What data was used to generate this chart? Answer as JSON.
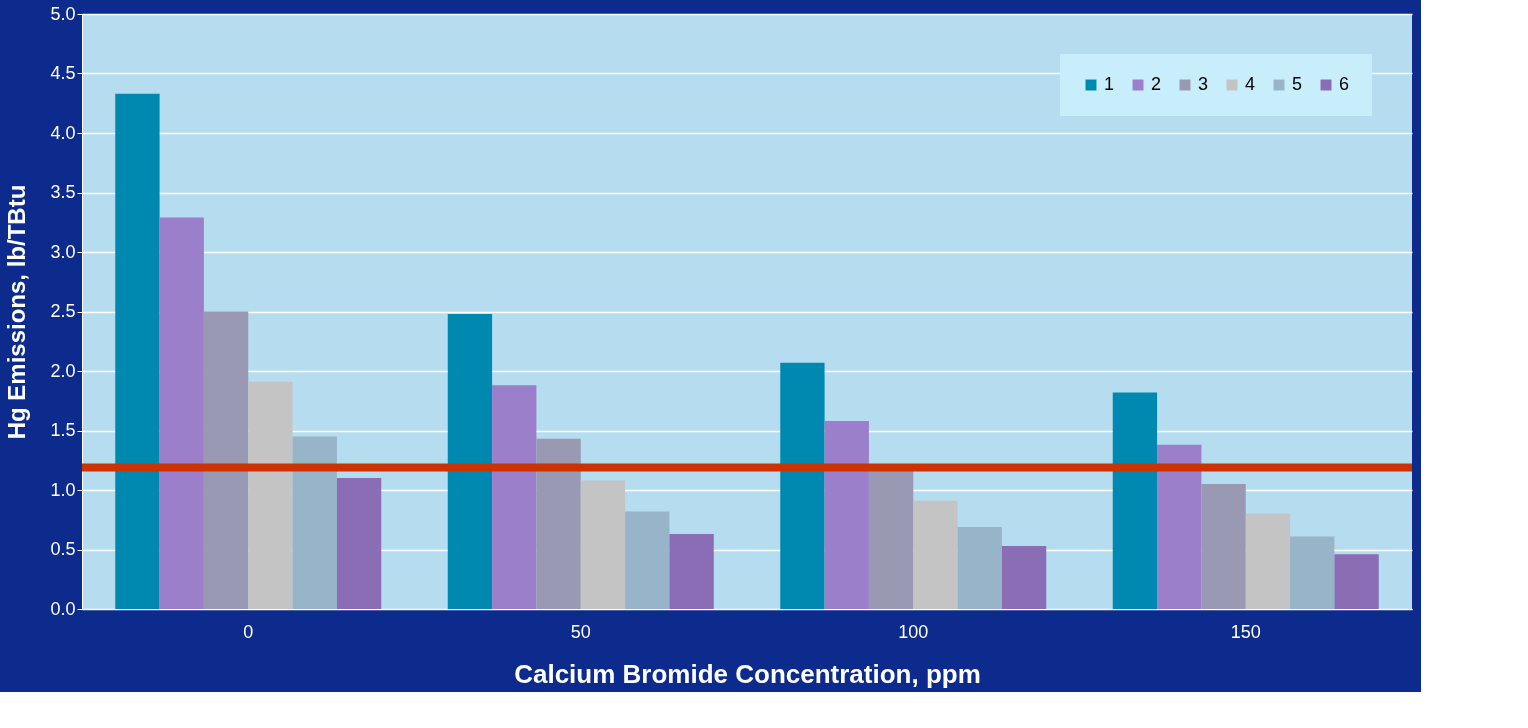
{
  "chart_data": {
    "type": "bar",
    "xlabel": "Calcium Bromide Concentration, ppm",
    "ylabel": "Hg Emissions, lb/TBtu",
    "categories": [
      "0",
      "50",
      "100",
      "150"
    ],
    "series": [
      {
        "name": "1",
        "color": "#0089b0",
        "values": [
          4.33,
          2.48,
          2.07,
          1.82
        ]
      },
      {
        "name": "2",
        "color": "#9b7fcb",
        "values": [
          3.29,
          1.88,
          1.58,
          1.38
        ]
      },
      {
        "name": "3",
        "color": "#9999b3",
        "values": [
          2.5,
          1.43,
          1.16,
          1.05
        ]
      },
      {
        "name": "4",
        "color": "#c4c4c4",
        "values": [
          1.91,
          1.08,
          0.91,
          0.8
        ]
      },
      {
        "name": "5",
        "color": "#98b4c8",
        "values": [
          1.45,
          0.82,
          0.69,
          0.61
        ]
      },
      {
        "name": "6",
        "color": "#8a6db5",
        "values": [
          1.1,
          0.63,
          0.53,
          0.46
        ]
      }
    ],
    "ylim": [
      0,
      5
    ],
    "yticks": [
      {
        "value": 0,
        "label": "0.0"
      },
      0.5,
      {
        "value": 1,
        "label": "1.0"
      },
      1.5,
      {
        "value": 2,
        "label": "2.0"
      },
      2.5,
      {
        "value": 3,
        "label": "3.0"
      },
      3.5,
      {
        "value": 4,
        "label": "4.0"
      },
      4.5,
      {
        "value": 5,
        "label": "5.0"
      }
    ],
    "grid": "y",
    "legend": "top right",
    "ref_lines": [
      {
        "axis": "y",
        "value": 1.19,
        "color": "#cc3300"
      }
    ]
  }
}
